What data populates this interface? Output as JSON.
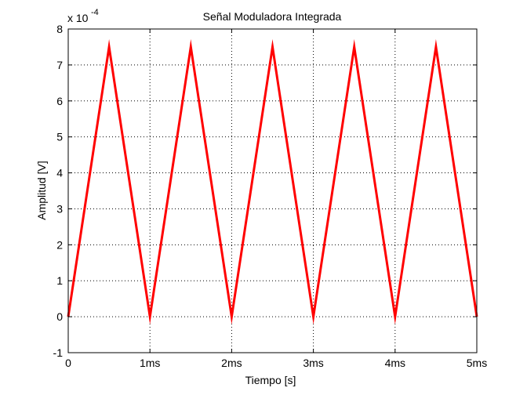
{
  "chart_data": {
    "type": "line",
    "title": "Señal Moduladora Integrada",
    "xlabel": "Tiempo [s]",
    "ylabel": "Amplitud [V]",
    "y_exponent_label": {
      "base": "x 10",
      "exponent": "-4"
    },
    "xlim": [
      0,
      5
    ],
    "ylim": [
      -1,
      8
    ],
    "x_ticks": [
      0,
      1,
      2,
      3,
      4,
      5
    ],
    "x_tick_labels": [
      "0",
      "1ms",
      "2ms",
      "3ms",
      "4ms",
      "5ms"
    ],
    "y_ticks": [
      -1,
      0,
      1,
      2,
      3,
      4,
      5,
      6,
      7,
      8
    ],
    "y_tick_labels": [
      "-1",
      "0",
      "1",
      "2",
      "3",
      "4",
      "5",
      "6",
      "7",
      "8"
    ],
    "grid": true,
    "series": [
      {
        "color": "#ff0000",
        "x": [
          0,
          0.5,
          1,
          1.5,
          2,
          2.5,
          3,
          3.5,
          4,
          4.5,
          5
        ],
        "y": [
          0,
          7.5,
          0,
          7.5,
          0,
          7.5,
          0,
          7.5,
          0,
          7.5,
          0
        ]
      }
    ]
  }
}
